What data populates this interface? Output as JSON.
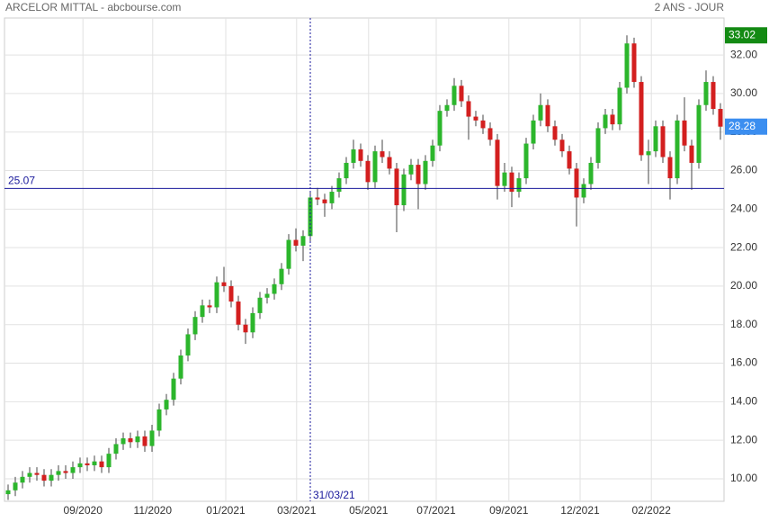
{
  "title": "ARCELOR MITTAL - abcbourse.com",
  "period": "2 ANS - JOUR",
  "chart_data": {
    "type": "candlestick",
    "xlim": [
      -0.5,
      99.5
    ],
    "xticks": [
      {
        "value": 10.4,
        "label": "09/2020"
      },
      {
        "value": 20.1,
        "label": "11/2020"
      },
      {
        "value": 30.25,
        "label": "01/2021"
      },
      {
        "value": 40.1,
        "label": "03/2021"
      },
      {
        "value": 50.1,
        "label": "05/2021"
      },
      {
        "value": 59.5,
        "label": "07/2021"
      },
      {
        "value": 69.6,
        "label": "09/2021"
      },
      {
        "value": 79.5,
        "label": "12/2021"
      },
      {
        "value": 89.4,
        "label": "02/2022"
      }
    ],
    "ylim": [
      8.83,
      33.92
    ],
    "yticks": [
      {
        "value": 10,
        "label": "10.00"
      },
      {
        "value": 12,
        "label": "12.00"
      },
      {
        "value": 14,
        "label": "14.00"
      },
      {
        "value": 16,
        "label": "16.00"
      },
      {
        "value": 18,
        "label": "18.00"
      },
      {
        "value": 20,
        "label": "20.00"
      },
      {
        "value": 22,
        "label": "22.00"
      },
      {
        "value": 24,
        "label": "24.00"
      },
      {
        "value": 26,
        "label": "26.00"
      },
      {
        "value": 28,
        "label": "28.00"
      },
      {
        "value": 30,
        "label": "30.00"
      },
      {
        "value": 32,
        "label": "32.00"
      }
    ],
    "grid": true,
    "up_color": "#2cb62c",
    "down_color": "#d31f1f",
    "open": [
      9.2,
      9.4,
      9.8,
      10.1,
      10.3,
      10.2,
      9.9,
      10.2,
      10.4,
      10.3,
      10.6,
      10.8,
      10.7,
      10.9,
      10.6,
      11.3,
      11.8,
      12.1,
      11.9,
      12.2,
      11.7,
      12.5,
      13.6,
      14.1,
      15.2,
      16.4,
      17.5,
      18.4,
      19.0,
      18.9,
      20.2,
      20.0,
      19.2,
      18.0,
      17.6,
      18.6,
      19.4,
      19.6,
      20.1,
      20.9,
      22.4,
      22.1,
      22.6,
      24.6,
      24.5,
      24.3,
      24.9,
      25.6,
      26.4,
      27.1,
      26.5,
      25.4,
      27.0,
      26.7,
      26.1,
      24.2,
      25.8,
      26.3,
      25.3,
      26.5,
      27.3,
      29.1,
      29.4,
      30.4,
      29.6,
      28.8,
      28.6,
      28.2,
      27.6,
      25.2,
      25.9,
      24.9,
      25.6,
      27.4,
      28.6,
      29.4,
      28.3,
      27.6,
      27.0,
      26.1,
      24.6,
      25.3,
      26.4,
      28.2,
      28.9,
      28.4,
      30.3,
      32.6,
      30.6,
      26.8,
      27.0,
      28.3,
      26.7,
      25.6,
      28.6,
      27.3,
      26.4,
      29.4,
      30.6,
      29.2
    ],
    "high": [
      9.7,
      10.1,
      10.4,
      10.6,
      10.6,
      10.5,
      10.5,
      10.7,
      10.7,
      10.9,
      11.1,
      11.1,
      11.2,
      11.2,
      11.6,
      12.1,
      12.4,
      12.4,
      12.5,
      12.5,
      12.8,
      13.9,
      14.4,
      15.5,
      16.7,
      17.8,
      18.7,
      19.3,
      19.3,
      20.5,
      21.0,
      20.3,
      19.5,
      18.3,
      18.9,
      19.7,
      19.9,
      20.4,
      21.2,
      22.7,
      23.0,
      22.9,
      24.9,
      25.1,
      24.8,
      25.2,
      25.9,
      26.7,
      27.6,
      27.4,
      26.8,
      27.3,
      27.6,
      27.0,
      26.4,
      26.1,
      26.6,
      26.6,
      26.8,
      27.6,
      29.4,
      29.7,
      30.8,
      30.7,
      29.9,
      29.1,
      28.9,
      28.5,
      27.9,
      26.4,
      26.2,
      25.9,
      27.7,
      28.9,
      30.0,
      29.7,
      28.6,
      27.9,
      27.3,
      26.4,
      25.6,
      26.7,
      28.5,
      29.2,
      29.2,
      30.6,
      33.02,
      32.9,
      30.9,
      27.6,
      28.6,
      28.6,
      27.0,
      28.9,
      29.8,
      27.6,
      29.7,
      31.2,
      30.9,
      29.5
    ],
    "low": [
      8.9,
      9.1,
      9.5,
      9.8,
      9.9,
      9.6,
      9.6,
      9.9,
      10.0,
      10.0,
      10.3,
      10.4,
      10.4,
      10.3,
      10.3,
      11.0,
      11.5,
      11.6,
      11.6,
      11.4,
      11.4,
      12.2,
      13.3,
      13.8,
      14.9,
      16.1,
      17.2,
      18.1,
      18.6,
      18.6,
      19.7,
      18.9,
      17.7,
      17.0,
      17.3,
      18.3,
      19.1,
      19.3,
      19.8,
      20.6,
      21.8,
      21.3,
      22.3,
      24.2,
      23.6,
      24.0,
      24.6,
      25.3,
      26.1,
      26.2,
      25.0,
      25.1,
      26.4,
      25.8,
      22.8,
      23.9,
      25.5,
      24.0,
      25.0,
      26.2,
      27.0,
      28.8,
      29.1,
      29.3,
      27.6,
      28.3,
      27.9,
      27.3,
      24.5,
      24.9,
      24.1,
      24.6,
      25.3,
      27.1,
      28.3,
      28.0,
      27.3,
      26.7,
      25.8,
      23.1,
      24.3,
      25.0,
      26.1,
      27.9,
      28.1,
      28.1,
      30.0,
      30.3,
      26.5,
      25.3,
      26.7,
      26.4,
      24.5,
      25.3,
      27.0,
      25.0,
      26.1,
      29.1,
      28.9,
      27.6
    ],
    "close": [
      9.4,
      9.8,
      10.1,
      10.3,
      10.2,
      9.9,
      10.2,
      10.4,
      10.3,
      10.6,
      10.8,
      10.7,
      10.9,
      10.6,
      11.3,
      11.8,
      12.1,
      11.9,
      12.2,
      11.7,
      12.5,
      13.6,
      14.1,
      15.2,
      16.4,
      17.5,
      18.4,
      19.0,
      18.9,
      20.2,
      20.0,
      19.2,
      18.0,
      17.6,
      18.6,
      19.4,
      19.6,
      20.1,
      20.9,
      22.4,
      22.1,
      22.6,
      24.6,
      24.5,
      24.3,
      24.9,
      25.6,
      26.4,
      27.1,
      26.5,
      25.4,
      27.0,
      26.7,
      26.1,
      24.2,
      25.8,
      26.3,
      25.3,
      26.5,
      27.3,
      29.1,
      29.4,
      30.4,
      29.6,
      28.8,
      28.6,
      28.2,
      27.6,
      25.2,
      25.9,
      24.9,
      25.6,
      27.4,
      28.6,
      29.4,
      28.3,
      27.6,
      27.0,
      26.1,
      24.6,
      25.3,
      26.4,
      28.2,
      28.9,
      28.4,
      30.3,
      32.6,
      30.6,
      26.8,
      27.0,
      28.3,
      26.7,
      25.6,
      28.6,
      27.3,
      26.4,
      29.4,
      30.6,
      29.2,
      28.28
    ],
    "hline": 25.07,
    "vline": {
      "value": 42,
      "label": "31/03/21"
    },
    "high_marker": 33.02,
    "last_marker": 28.28
  }
}
